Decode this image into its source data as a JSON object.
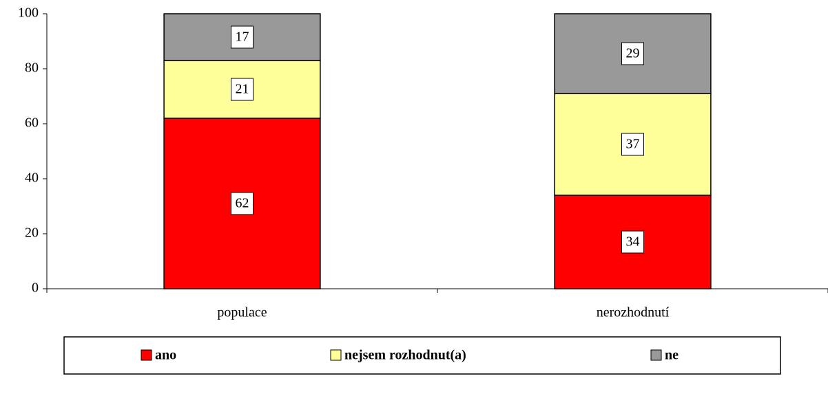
{
  "chart_data": {
    "type": "stacked_bar",
    "categories": [
      "populace",
      "nerozhodnutí"
    ],
    "series": [
      {
        "name": "ano",
        "color": "#ff0000",
        "values": [
          62,
          34
        ]
      },
      {
        "name": "nejsem rozhodnut(a)",
        "color": "#ffff99",
        "values": [
          21,
          37
        ]
      },
      {
        "name": "ne",
        "color": "#999999",
        "values": [
          17,
          29
        ]
      }
    ],
    "ylim": [
      0,
      100
    ],
    "yticks": [
      0,
      20,
      40,
      60,
      80,
      100
    ],
    "grid": false,
    "legend": "bottom"
  }
}
